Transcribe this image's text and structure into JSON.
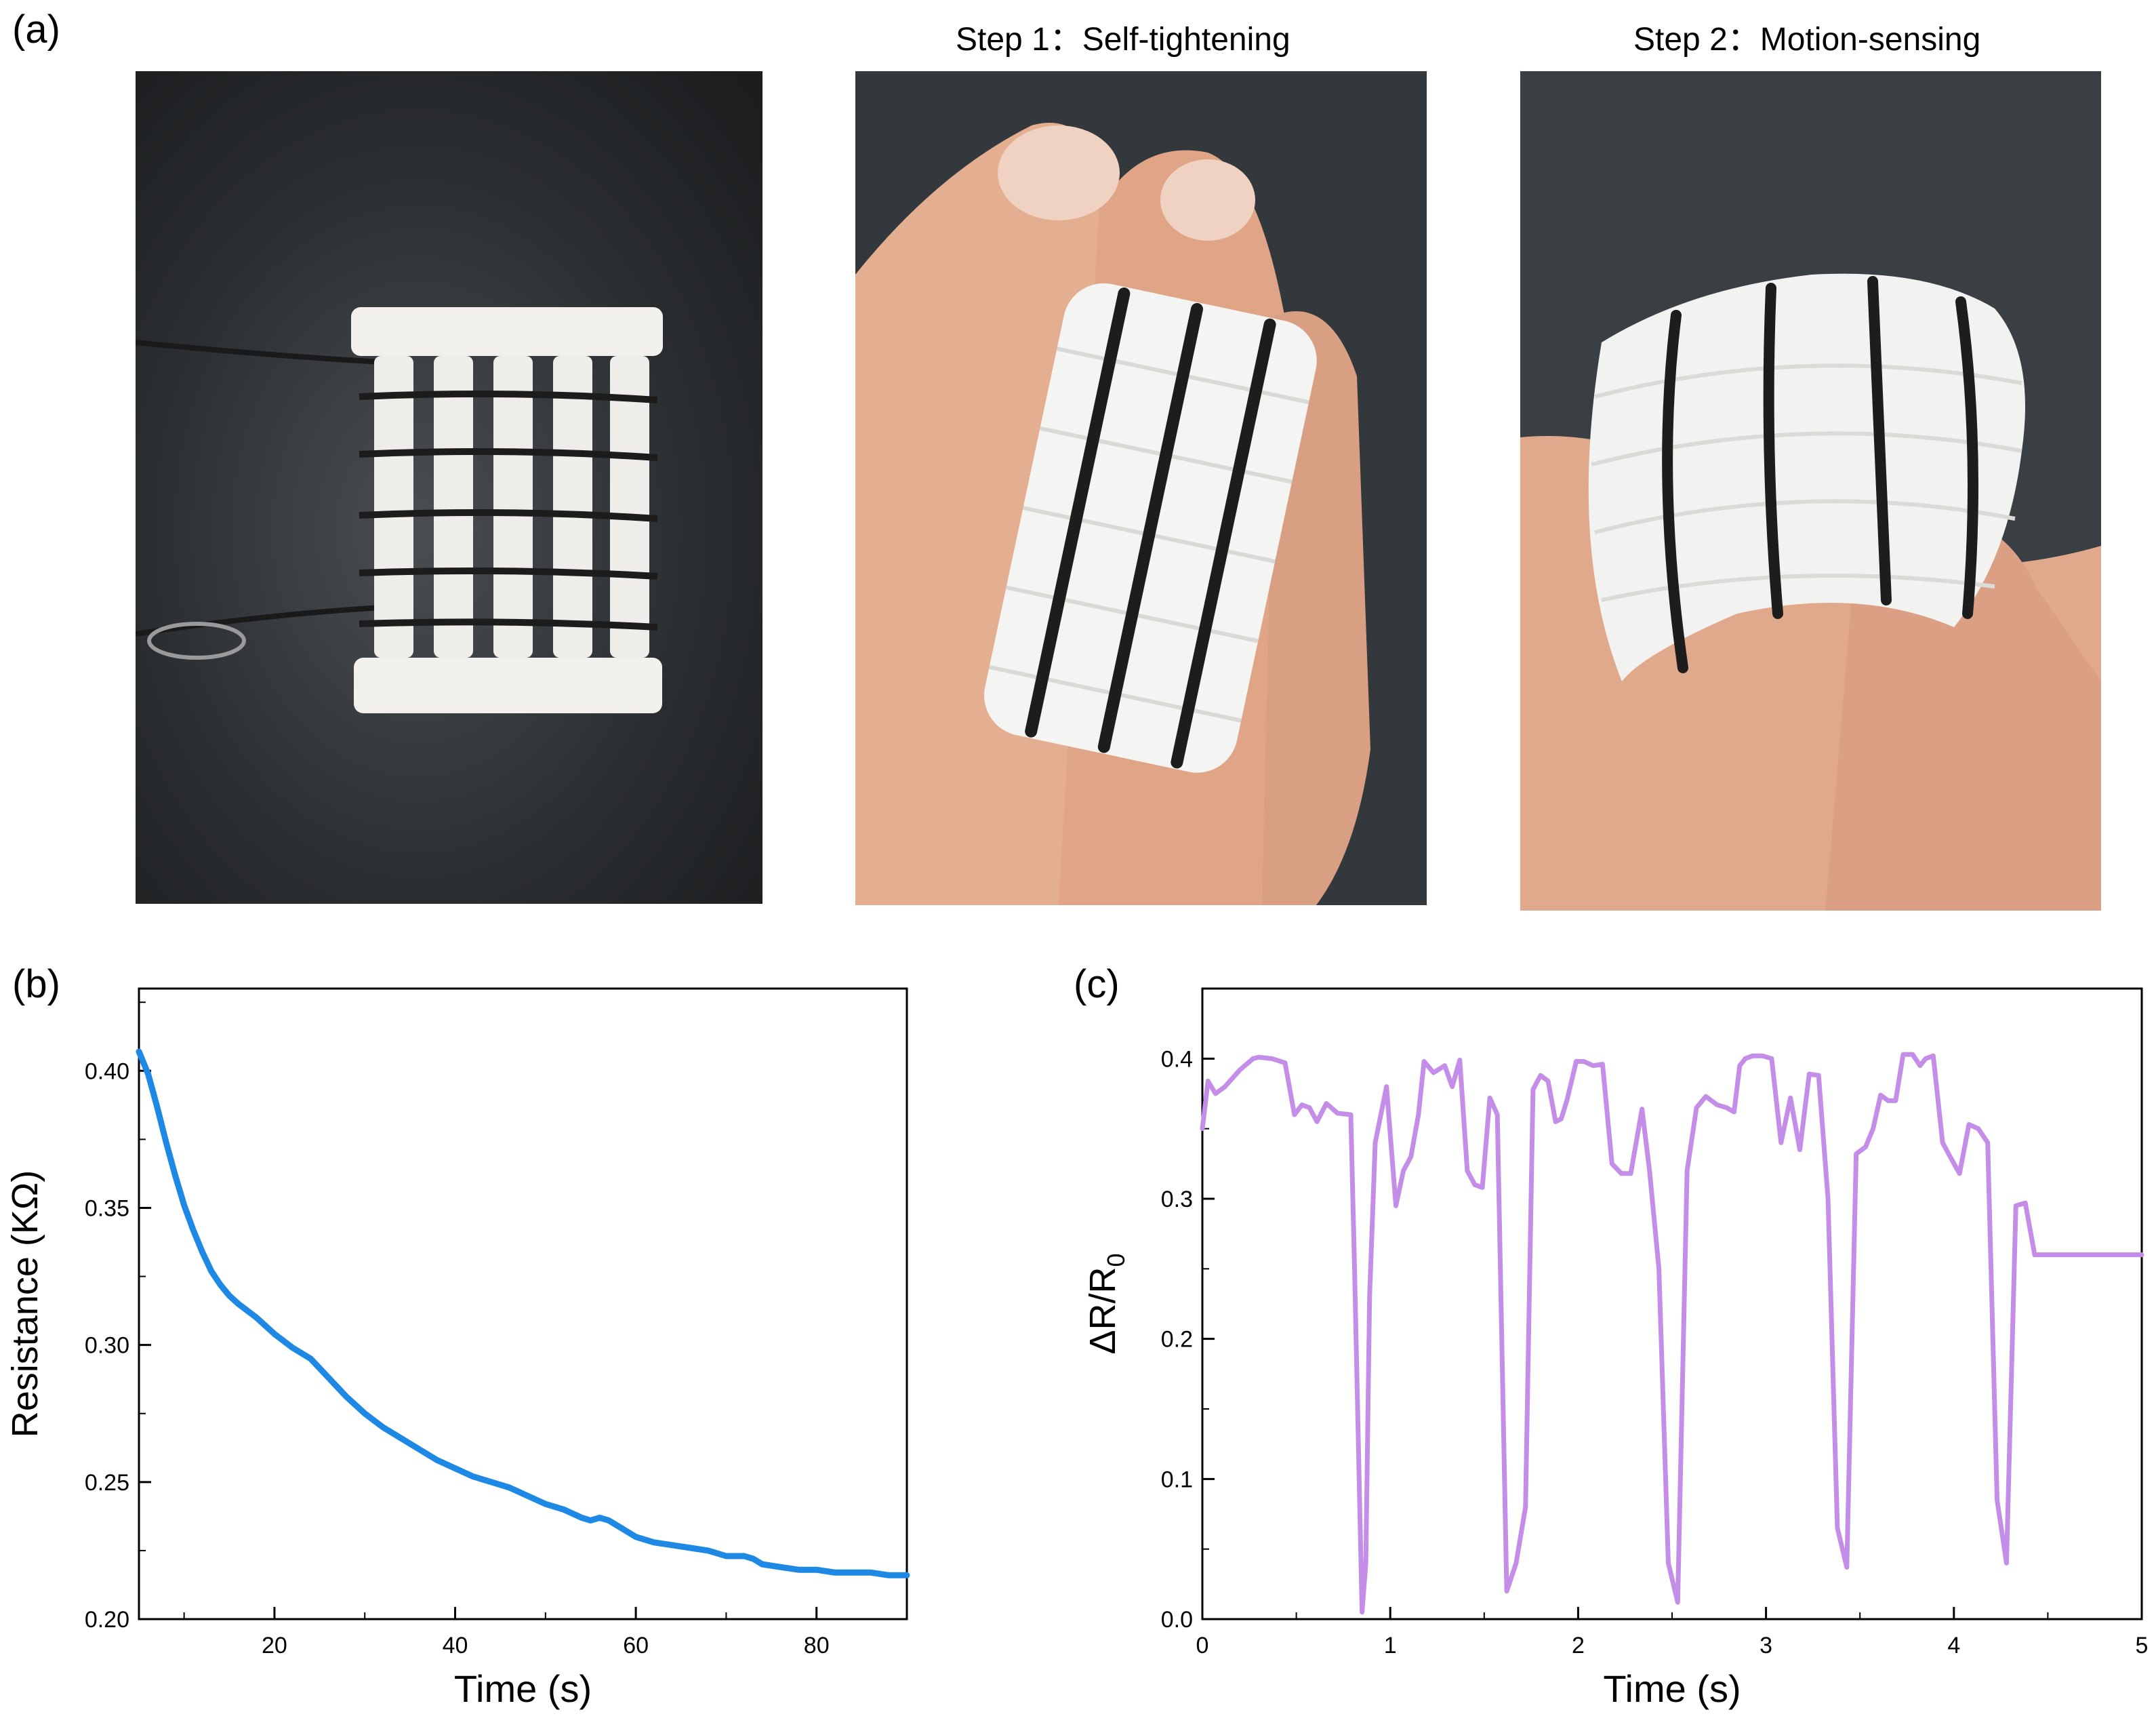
{
  "panels": {
    "a": {
      "letter": "(a)"
    },
    "b": {
      "letter": "(b)"
    },
    "c": {
      "letter": "(c)"
    }
  },
  "photos": {
    "flat": {
      "caption": "",
      "description_icon": "woven-sensor-flat-photo"
    },
    "step1": {
      "caption": "Step 1：Self-tightening",
      "description_icon": "finger-sensor-photo"
    },
    "step2": {
      "caption": "Step 2：Motion-sensing",
      "description_icon": "bent-finger-sensor-photo"
    }
  },
  "colors": {
    "b_line": "#1e88e5",
    "c_line": "#c48ee8",
    "photo_bg": "#2e3236",
    "fabric": "#f3f3f0",
    "skin": "#e0aa8c",
    "thread": "#1f1f1f"
  },
  "chart_data": [
    {
      "panel": "b",
      "type": "line",
      "xlabel": "Time (s)",
      "ylabel": "Resistance (KΩ)",
      "xlim": [
        5,
        90
      ],
      "ylim": [
        0.2,
        0.43
      ],
      "xticks": [
        20,
        40,
        60,
        80
      ],
      "yticks": [
        0.2,
        0.25,
        0.3,
        0.35,
        0.4
      ],
      "ytick_labels": [
        "0.20",
        "0.25",
        "0.30",
        "0.35",
        "0.40"
      ],
      "series": [
        {
          "x": [
            5,
            6,
            7,
            8,
            9,
            10,
            11,
            12,
            13,
            14,
            15,
            16,
            18,
            20,
            22,
            24,
            26,
            28,
            30,
            32,
            34,
            36,
            38,
            40,
            42,
            44,
            46,
            48,
            50,
            52,
            54,
            55,
            56,
            57,
            58,
            60,
            62,
            64,
            66,
            68,
            70,
            72,
            73,
            74,
            76,
            78,
            80,
            82,
            84,
            86,
            88,
            90
          ],
          "y": [
            0.407,
            0.399,
            0.387,
            0.374,
            0.362,
            0.351,
            0.342,
            0.334,
            0.327,
            0.322,
            0.318,
            0.315,
            0.31,
            0.304,
            0.299,
            0.295,
            0.288,
            0.281,
            0.275,
            0.27,
            0.266,
            0.262,
            0.258,
            0.255,
            0.252,
            0.25,
            0.248,
            0.245,
            0.242,
            0.24,
            0.237,
            0.236,
            0.237,
            0.236,
            0.234,
            0.23,
            0.228,
            0.227,
            0.226,
            0.225,
            0.223,
            0.223,
            0.222,
            0.22,
            0.219,
            0.218,
            0.218,
            0.217,
            0.217,
            0.217,
            0.216,
            0.216
          ]
        }
      ]
    },
    {
      "panel": "c",
      "type": "line",
      "xlabel": "Time (s)",
      "ylabel": "ΔR/R",
      "ylabel_subscript": "0",
      "xlim": [
        0,
        5
      ],
      "ylim": [
        0,
        0.45
      ],
      "xticks": [
        0,
        1,
        2,
        3,
        4,
        5
      ],
      "yticks": [
        0.0,
        0.1,
        0.2,
        0.3,
        0.4
      ],
      "ytick_labels": [
        "0.0",
        "0.1",
        "0.2",
        "0.3",
        "0.4"
      ],
      "series": [
        {
          "x": [
            0.0,
            0.03,
            0.07,
            0.12,
            0.2,
            0.27,
            0.3,
            0.37,
            0.44,
            0.49,
            0.53,
            0.57,
            0.61,
            0.66,
            0.72,
            0.79,
            0.81,
            0.85,
            0.87,
            0.89,
            0.92,
            0.98,
            1.03,
            1.07,
            1.11,
            1.15,
            1.18,
            1.23,
            1.29,
            1.33,
            1.37,
            1.41,
            1.45,
            1.49,
            1.53,
            1.57,
            1.62,
            1.67,
            1.72,
            1.76,
            1.8,
            1.84,
            1.88,
            1.91,
            1.94,
            1.99,
            2.03,
            2.08,
            2.13,
            2.18,
            2.23,
            2.28,
            2.34,
            2.38,
            2.43,
            2.48,
            2.53,
            2.58,
            2.63,
            2.68,
            2.74,
            2.79,
            2.83,
            2.86,
            2.89,
            2.93,
            2.98,
            3.03,
            3.08,
            3.13,
            3.18,
            3.23,
            3.28,
            3.33,
            3.38,
            3.43,
            3.48,
            3.53,
            3.57,
            3.61,
            3.65,
            3.69,
            3.73,
            3.78,
            3.82,
            3.85,
            3.89,
            3.94,
            3.98,
            4.03,
            4.08,
            4.13,
            4.18,
            4.23,
            4.28,
            4.33,
            4.38,
            4.43,
            4.48,
            4.53,
            4.58,
            4.63,
            4.68,
            4.74,
            4.78,
            4.81,
            4.84,
            4.86,
            4.9,
            4.95,
            4.98,
            5.0
          ],
          "y": [
            0.35,
            0.384,
            0.375,
            0.38,
            0.392,
            0.4,
            0.401,
            0.4,
            0.397,
            0.36,
            0.367,
            0.365,
            0.355,
            0.368,
            0.361,
            0.36,
            0.25,
            0.005,
            0.04,
            0.23,
            0.34,
            0.38,
            0.295,
            0.32,
            0.33,
            0.36,
            0.398,
            0.39,
            0.395,
            0.38,
            0.399,
            0.32,
            0.31,
            0.308,
            0.372,
            0.36,
            0.02,
            0.04,
            0.08,
            0.378,
            0.388,
            0.384,
            0.355,
            0.357,
            0.37,
            0.398,
            0.398,
            0.395,
            0.396,
            0.325,
            0.318,
            0.318,
            0.364,
            0.32,
            0.25,
            0.04,
            0.012,
            0.32,
            0.365,
            0.373,
            0.367,
            0.365,
            0.362,
            0.395,
            0.4,
            0.402,
            0.402,
            0.4,
            0.34,
            0.372,
            0.335,
            0.389,
            0.388,
            0.3,
            0.065,
            0.037,
            0.332,
            0.337,
            0.35,
            0.374,
            0.37,
            0.37,
            0.403,
            0.403,
            0.395,
            0.4,
            0.402,
            0.34,
            0.33,
            0.318,
            0.353,
            0.35,
            0.34,
            0.085,
            0.04,
            0.295,
            0.297,
            0.26,
            0.26,
            0.26,
            0.26,
            0.26,
            0.26,
            0.26,
            0.26,
            0.26,
            0.26,
            0.26,
            0.26,
            0.26,
            0.26,
            0.26
          ]
        }
      ]
    }
  ]
}
